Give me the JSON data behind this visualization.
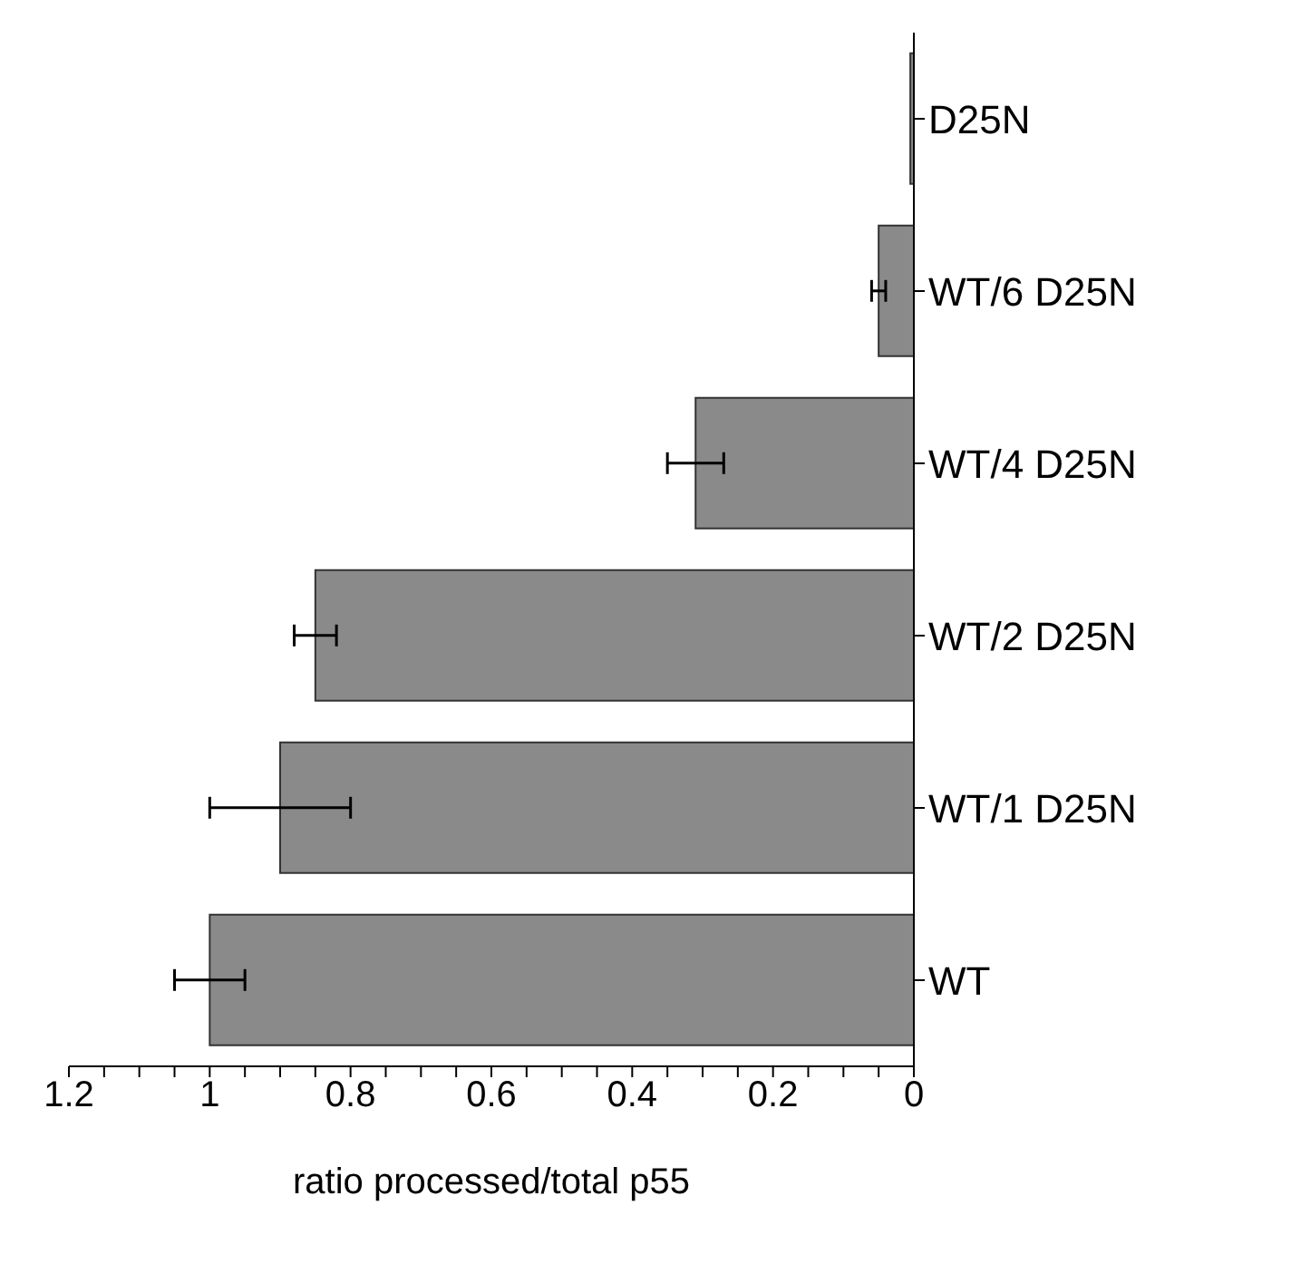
{
  "chart_data": {
    "type": "bar",
    "orientation": "horizontal",
    "xlabel": "ratio processed/total p55",
    "categories": [
      "D25N",
      "WT/6 D25N",
      "WT/4 D25N",
      "WT/2 D25N",
      "WT/1 D25N",
      "WT"
    ],
    "values": [
      0.005,
      0.05,
      0.31,
      0.85,
      0.9,
      1.0
    ],
    "errors": [
      null,
      0.01,
      0.04,
      0.03,
      0.1,
      0.05
    ],
    "color": "#8a8a8a",
    "xlim": [
      1.2,
      0
    ],
    "xticks": [
      1.2,
      {
        "value": 1.15,
        "label": null
      },
      {
        "value": 1.1,
        "label": null
      },
      {
        "value": 1.05,
        "label": null
      },
      1,
      {
        "value": 0.95,
        "label": null
      },
      {
        "value": 0.9,
        "label": null
      },
      {
        "value": 0.85,
        "label": null
      },
      0.8,
      {
        "value": 0.75,
        "label": null
      },
      {
        "value": 0.7,
        "label": null
      },
      {
        "value": 0.65,
        "label": null
      },
      0.6,
      {
        "value": 0.55,
        "label": null
      },
      {
        "value": 0.5,
        "label": null
      },
      {
        "value": 0.45,
        "label": null
      },
      0.4,
      {
        "value": 0.35,
        "label": null
      },
      {
        "value": 0.3,
        "label": null
      },
      {
        "value": 0.25,
        "label": null
      },
      0.2,
      {
        "value": 0.15,
        "label": null
      },
      {
        "value": 0.1,
        "label": null
      },
      {
        "value": 0.05,
        "label": null
      },
      0
    ],
    "grid": false
  }
}
